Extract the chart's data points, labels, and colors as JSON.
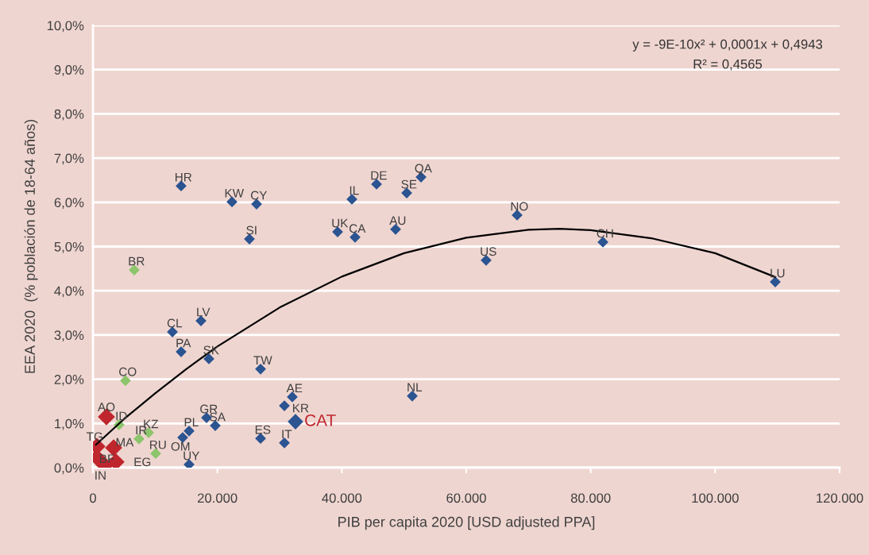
{
  "chart_data": {
    "type": "scatter",
    "xlabel": "PIB per capita 2020 [USD adjusted PPA]",
    "ylabel": "EEA 2020  (% población de 18-64 años)",
    "xlim": [
      0,
      120000
    ],
    "xticks": [
      {
        "value": 0,
        "label": "0"
      },
      {
        "value": 20000,
        "label": "20.000"
      },
      {
        "value": 40000,
        "label": "40.000"
      },
      {
        "value": 60000,
        "label": "60.000"
      },
      {
        "value": 80000,
        "label": "80.000"
      },
      {
        "value": 100000,
        "label": "100.000"
      },
      {
        "value": 120000,
        "label": "120.000"
      }
    ],
    "ylim": [
      0,
      10
    ],
    "yticks": [
      {
        "value": 0,
        "label": "0,0%"
      },
      {
        "value": 1,
        "label": "1,0%"
      },
      {
        "value": 2,
        "label": "2,0%"
      },
      {
        "value": 3,
        "label": "3,0%"
      },
      {
        "value": 4,
        "label": "4,0%"
      },
      {
        "value": 5,
        "label": "5,0%"
      },
      {
        "value": 6,
        "label": "6,0%"
      },
      {
        "value": 7,
        "label": "7,0%"
      },
      {
        "value": 8,
        "label": "8,0%"
      },
      {
        "value": 9,
        "label": "9,0%"
      },
      {
        "value": 10,
        "label": "10,0%"
      }
    ],
    "grid": "y",
    "legend": false,
    "marker": "diamond",
    "series": [
      {
        "color": "#2b5491",
        "x": [
          14170,
          22340,
          26300,
          25150,
          41620,
          45580,
          50430,
          52730,
          39320,
          42130,
          48640,
          68170,
          63190,
          81960,
          109660,
          17360,
          12770,
          14170,
          18640,
          26940,
          32040,
          30770,
          18260,
          19660,
          15450,
          14430,
          26940,
          30770,
          15450,
          51320
        ],
        "values": [
          6.37,
          6.01,
          5.96,
          5.17,
          6.07,
          6.41,
          6.21,
          6.57,
          5.33,
          5.21,
          5.39,
          5.71,
          4.69,
          5.1,
          4.2,
          3.32,
          3.07,
          2.62,
          2.46,
          2.23,
          1.6,
          1.4,
          1.13,
          0.95,
          0.83,
          0.68,
          0.66,
          0.56,
          0.07,
          1.62
        ],
        "value_labels": [
          "HR",
          "KW",
          "CY",
          "SI",
          "IL",
          "DE",
          "SE",
          "QA",
          "UK",
          "CA",
          "AU",
          "NO",
          "US",
          "CH",
          "LU",
          "LV",
          "CL",
          "PA",
          "SK",
          "TW",
          "AE",
          "KR",
          "GR",
          "SA",
          "PL",
          "OM",
          "ES",
          "IT",
          "UY",
          "NL"
        ]
      },
      {
        "color": "#2b5491",
        "x": [
          32550
        ],
        "values": [
          1.04
        ],
        "value_labels": [
          "CAT"
        ]
      },
      {
        "color": "#8cc56b",
        "x": [
          6640,
          5230,
          4210,
          8940,
          7400,
          10090
        ],
        "values": [
          4.47,
          1.97,
          0.97,
          0.79,
          0.65,
          0.32
        ],
        "value_labels": [
          "BR",
          "CO",
          "ID",
          "KZ",
          "IR",
          "RU"
        ]
      },
      {
        "color": "#c0262d",
        "x": [
          2170,
          640,
          3320,
          640,
          1910,
          3700
        ],
        "values": [
          1.15,
          0.48,
          0.45,
          0.23,
          0.05,
          0.13
        ],
        "value_labels": [
          "AO",
          "TG",
          "MA",
          "BF",
          "IN",
          "EG"
        ]
      },
      {
        "type": "line",
        "color": "#000000",
        "marker": "none",
        "x": [
          500,
          5000,
          10000,
          15000,
          20000,
          30000,
          40000,
          50000,
          60000,
          70000,
          75000,
          80000,
          90000,
          100000,
          109660
        ],
        "values": [
          0.52,
          1.1,
          1.68,
          2.23,
          2.74,
          3.62,
          4.32,
          4.85,
          5.2,
          5.38,
          5.4,
          5.37,
          5.18,
          4.85,
          4.31
        ]
      }
    ],
    "annotations": [
      "y = -9E-10x² + 0,0001x + 0,4943",
      "R² = 0,4565"
    ]
  }
}
